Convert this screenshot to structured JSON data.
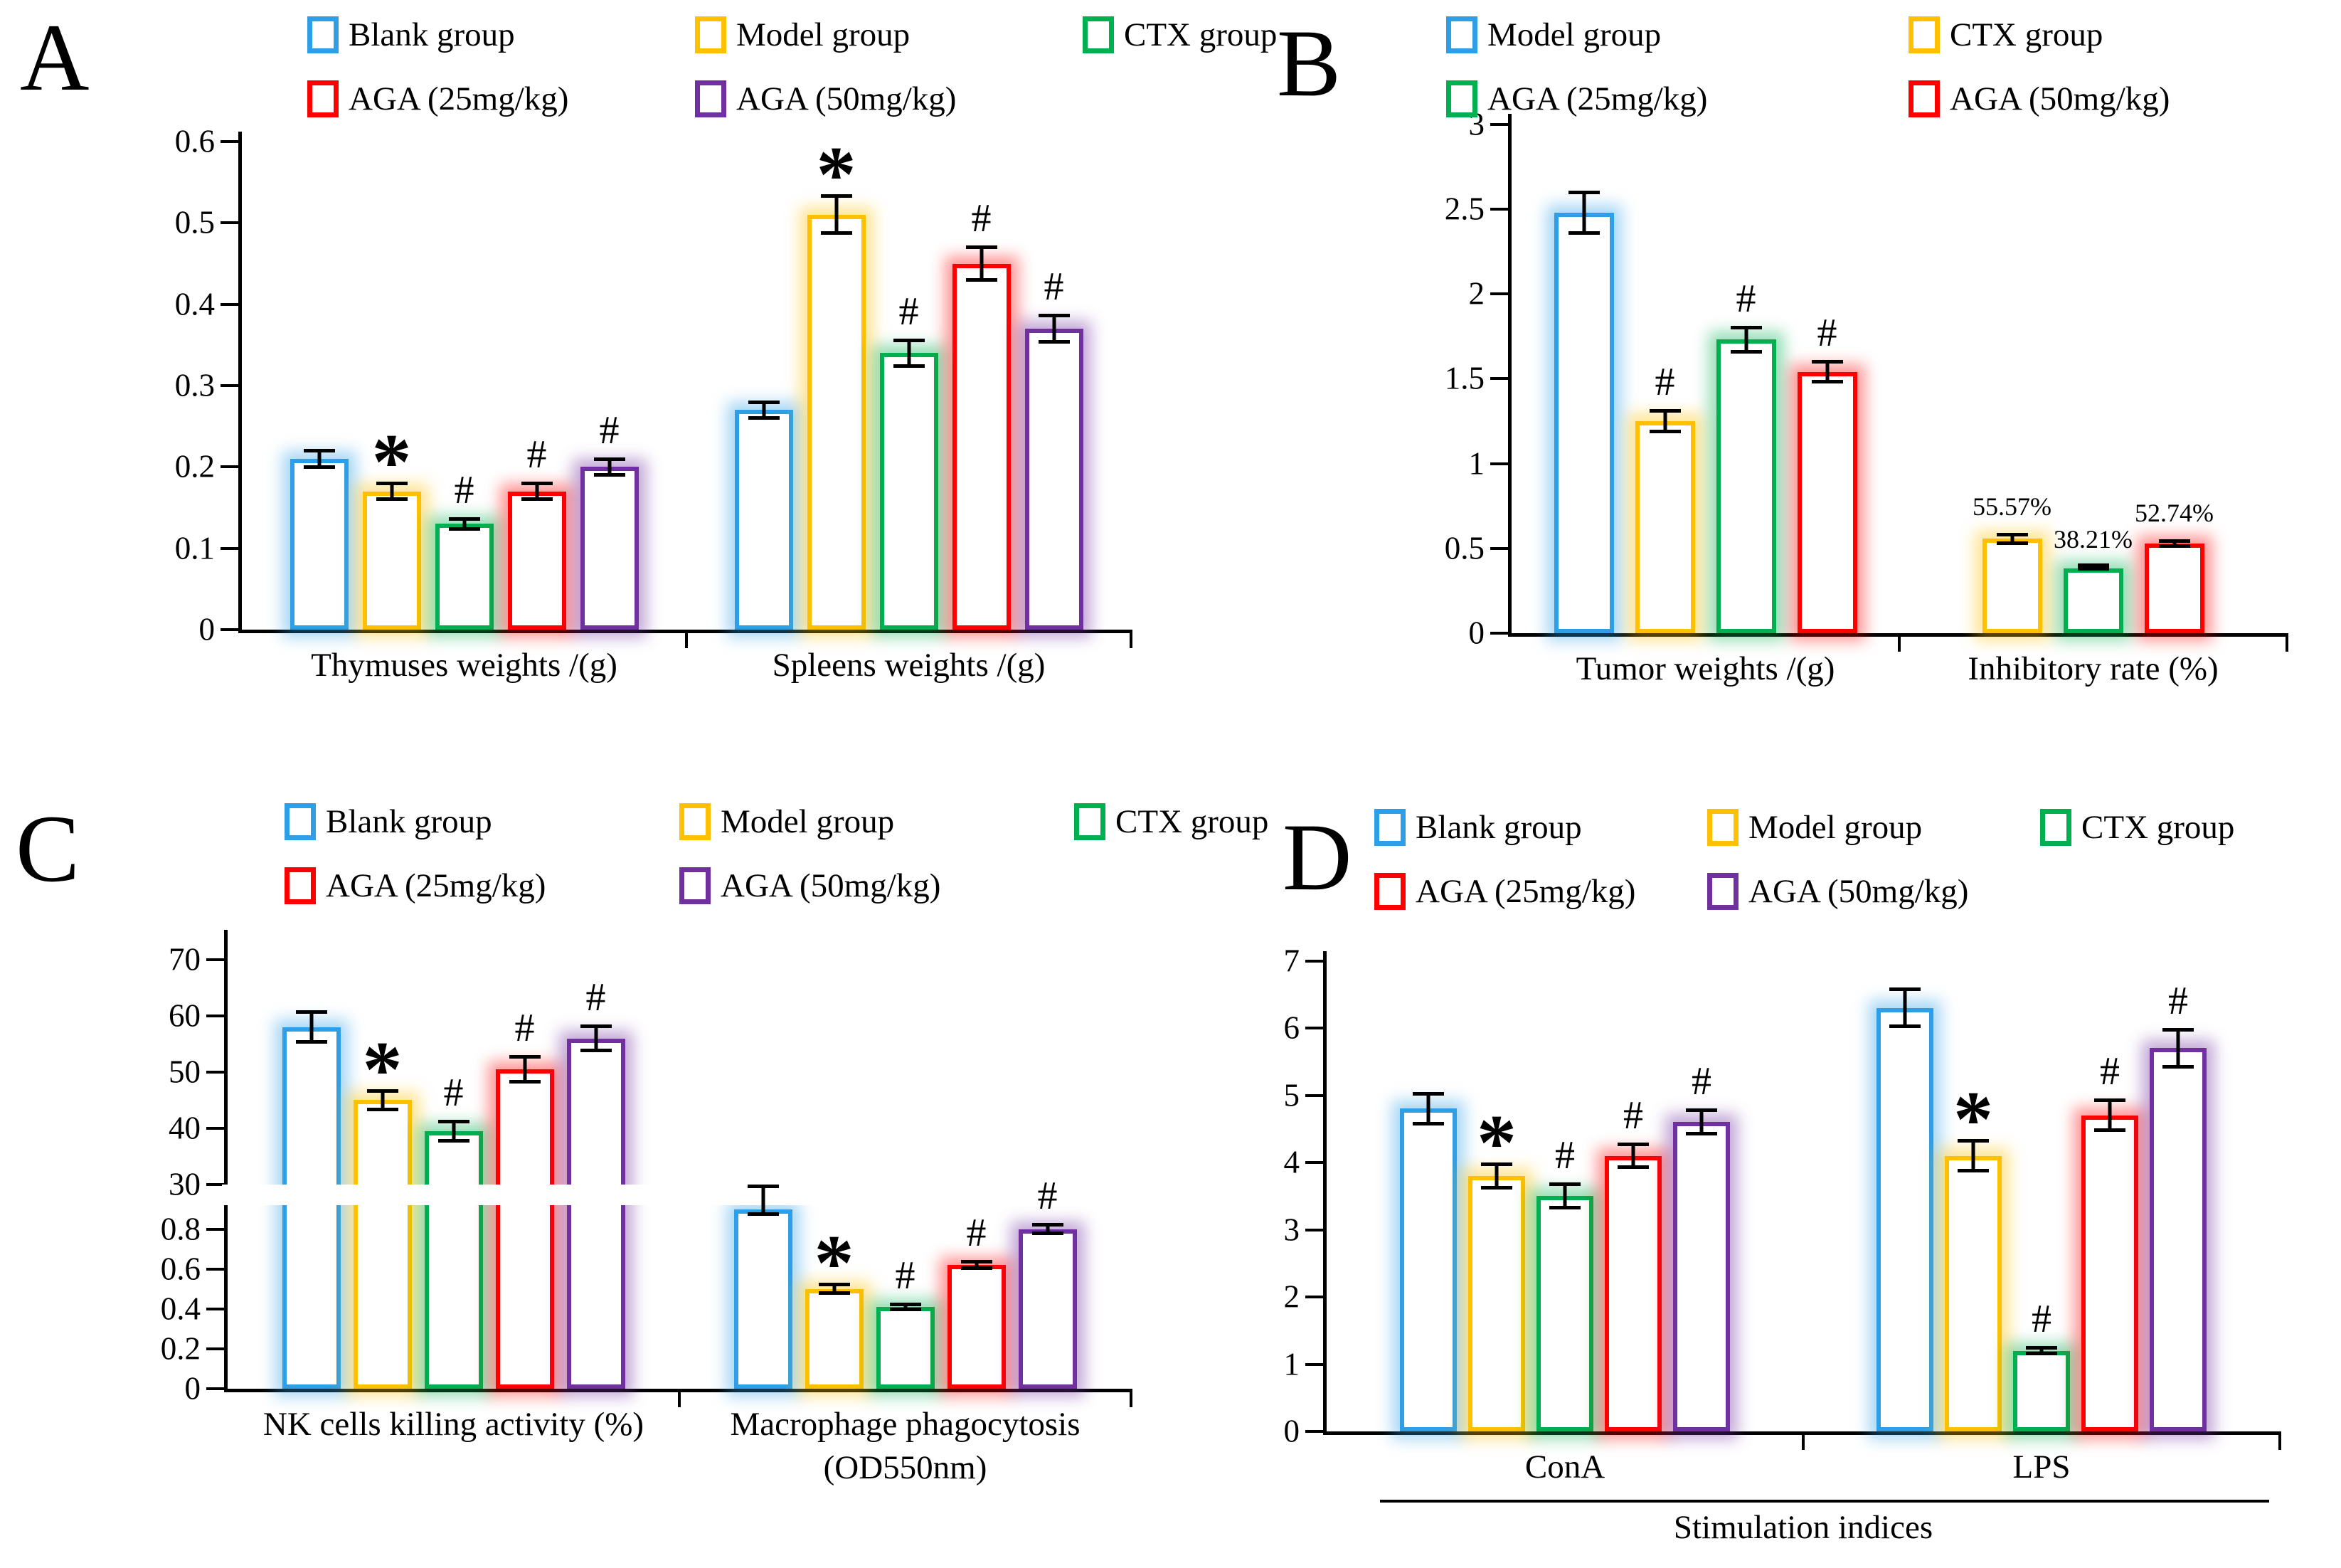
{
  "figure": {
    "background": "#FFFFFF"
  },
  "colors": {
    "blank": "#2E9FE6",
    "model_yellow": "#FFC000",
    "ctx_green": "#00B050",
    "aga25_red": "#FF0000",
    "aga50_purple": "#7030A0",
    "axis": "#000000"
  },
  "chart_data": [
    {
      "panel": "A",
      "type": "bar",
      "grid": false,
      "legend_position": "top",
      "legend_rows": [
        [
          {
            "label": "Blank group",
            "color": "#2E9FE6"
          },
          {
            "label": "Model group",
            "color": "#FFC000"
          },
          {
            "label": "CTX group",
            "color": "#00B050"
          }
        ],
        [
          {
            "label": "AGA (25mg/kg)",
            "color": "#FF0000"
          },
          {
            "label": "AGA (50mg/kg)",
            "color": "#7030A0"
          }
        ]
      ],
      "y_axis": {
        "ylim": [
          0,
          0.6
        ],
        "break_frac": 0,
        "segments": [
          {
            "min": 0,
            "max": 0.6,
            "frac": 0.98,
            "ticks": [
              [
                "0",
                0
              ],
              [
                "0.1",
                0.1
              ],
              [
                "0.2",
                0.2
              ],
              [
                "0.3",
                0.3
              ],
              [
                "0.4",
                0.4
              ],
              [
                "0.5",
                0.5
              ],
              [
                "0.6",
                0.6
              ]
            ]
          }
        ]
      },
      "groups": [
        {
          "label": [
            "Thymuses weights /(g)"
          ],
          "bars": [
            {
              "series": "Blank group",
              "color": "#2E9FE6",
              "value": 0.21,
              "err": 0.012,
              "mark": ""
            },
            {
              "series": "Model group",
              "color": "#FFC000",
              "value": 0.17,
              "err": 0.012,
              "mark": "*"
            },
            {
              "series": "CTX group",
              "color": "#00B050",
              "value": 0.13,
              "err": 0.008,
              "mark": "#"
            },
            {
              "series": "AGA (25mg/kg)",
              "color": "#FF0000",
              "value": 0.17,
              "err": 0.012,
              "mark": "#"
            },
            {
              "series": "AGA (50mg/kg)",
              "color": "#7030A0",
              "value": 0.2,
              "err": 0.012,
              "mark": "#"
            }
          ]
        },
        {
          "label": [
            "Spleens weights /(g)"
          ],
          "bars": [
            {
              "series": "Blank group",
              "color": "#2E9FE6",
              "value": 0.27,
              "err": 0.012,
              "mark": ""
            },
            {
              "series": "Model group",
              "color": "#FFC000",
              "value": 0.51,
              "err": 0.025,
              "mark": "*"
            },
            {
              "series": "CTX group",
              "color": "#00B050",
              "value": 0.34,
              "err": 0.018,
              "mark": "#"
            },
            {
              "series": "AGA (25mg/kg)",
              "color": "#FF0000",
              "value": 0.45,
              "err": 0.022,
              "mark": "#"
            },
            {
              "series": "AGA (50mg/kg)",
              "color": "#7030A0",
              "value": 0.37,
              "err": 0.018,
              "mark": "#"
            }
          ]
        }
      ],
      "x_bracket": null
    },
    {
      "panel": "B",
      "type": "bar",
      "grid": false,
      "legend_position": "top",
      "legend_rows": [
        [
          {
            "label": "Model group",
            "color": "#2E9FE6"
          },
          {
            "label": "CTX group",
            "color": "#FFC000"
          }
        ],
        [
          {
            "label": "AGA (25mg/kg)",
            "color": "#00B050"
          },
          {
            "label": "AGA (50mg/kg)",
            "color": "#FF0000"
          }
        ]
      ],
      "y_axis": {
        "ylim": [
          0,
          3
        ],
        "break_frac": 0,
        "segments": [
          {
            "min": 0,
            "max": 3,
            "frac": 0.98,
            "ticks": [
              [
                "0",
                0
              ],
              [
                "0.5",
                0.5
              ],
              [
                "1",
                1
              ],
              [
                "1.5",
                1.5
              ],
              [
                "2",
                2
              ],
              [
                "2.5",
                2.5
              ],
              [
                "3",
                3
              ]
            ]
          }
        ]
      },
      "groups": [
        {
          "label": [
            "Tumor weights /(g)"
          ],
          "bars": [
            {
              "series": "Model group",
              "color": "#2E9FE6",
              "value": 2.48,
              "err": 0.13,
              "mark": ""
            },
            {
              "series": "CTX group",
              "color": "#FFC000",
              "value": 1.25,
              "err": 0.07,
              "mark": "#"
            },
            {
              "series": "AGA (25mg/kg)",
              "color": "#00B050",
              "value": 1.73,
              "err": 0.08,
              "mark": "#"
            },
            {
              "series": "AGA (50mg/kg)",
              "color": "#FF0000",
              "value": 1.54,
              "err": 0.07,
              "mark": "#"
            }
          ]
        },
        {
          "label": [
            "Inhibitory rate (%)"
          ],
          "bars": [
            {
              "series": "CTX group",
              "color": "#FFC000",
              "value": 0.556,
              "err": 0.035,
              "mark": "",
              "value_label": "55.57%"
            },
            {
              "series": "AGA (25mg/kg)",
              "color": "#00B050",
              "value": 0.382,
              "err": 0.015,
              "mark": "",
              "value_label": "38.21%"
            },
            {
              "series": "AGA (50mg/kg)",
              "color": "#FF0000",
              "value": 0.527,
              "err": 0.025,
              "mark": "",
              "value_label": "52.74%"
            }
          ]
        }
      ],
      "x_bracket": null
    },
    {
      "panel": "C",
      "type": "bar",
      "grid": false,
      "legend_position": "top",
      "axis_break": true,
      "legend_rows": [
        [
          {
            "label": "Blank group",
            "color": "#2E9FE6"
          },
          {
            "label": "Model group",
            "color": "#FFC000"
          },
          {
            "label": "CTX group",
            "color": "#00B050"
          }
        ],
        [
          {
            "label": "AGA (25mg/kg)",
            "color": "#FF0000"
          },
          {
            "label": "AGA (50mg/kg)",
            "color": "#7030A0"
          }
        ]
      ],
      "y_axis": {
        "ylim": [
          0,
          70
        ],
        "break_frac": 0.045,
        "segments": [
          {
            "min": 0,
            "max": 0.92,
            "frac": 0.4,
            "ticks": [
              [
                "0",
                0
              ],
              [
                "0.2",
                0.2
              ],
              [
                "0.4",
                0.4
              ],
              [
                "0.6",
                0.6
              ],
              [
                "0.8",
                0.8
              ]
            ]
          },
          {
            "min": 30,
            "max": 70,
            "frac": 0.49,
            "ticks": [
              [
                "30",
                30
              ],
              [
                "40",
                40
              ],
              [
                "50",
                50
              ],
              [
                "60",
                60
              ],
              [
                "70",
                70
              ]
            ]
          }
        ]
      },
      "groups": [
        {
          "label": [
            "NK cells killing activity (%)"
          ],
          "bars": [
            {
              "series": "Blank group",
              "color": "#2E9FE6",
              "value": 58,
              "err": 3,
              "mark": ""
            },
            {
              "series": "Model group",
              "color": "#FFC000",
              "value": 45,
              "err": 2,
              "mark": "*"
            },
            {
              "series": "CTX group",
              "color": "#00B050",
              "value": 39.5,
              "err": 2,
              "mark": "#"
            },
            {
              "series": "AGA (25mg/kg)",
              "color": "#FF0000",
              "value": 50.5,
              "err": 2.5,
              "mark": "#"
            },
            {
              "series": "AGA (50mg/kg)",
              "color": "#7030A0",
              "value": 56,
              "err": 2.5,
              "mark": "#"
            }
          ]
        },
        {
          "label": [
            "Macrophage phagocytosis",
            "(OD550nm)"
          ],
          "bars": [
            {
              "series": "Blank group",
              "color": "#2E9FE6",
              "value": 0.9,
              "err": 0.035,
              "mark": ""
            },
            {
              "series": "Model group",
              "color": "#FFC000",
              "value": 0.5,
              "err": 0.03,
              "mark": "*"
            },
            {
              "series": "CTX group",
              "color": "#00B050",
              "value": 0.41,
              "err": 0.02,
              "mark": "#"
            },
            {
              "series": "AGA (25mg/kg)",
              "color": "#FF0000",
              "value": 0.62,
              "err": 0.025,
              "mark": "#"
            },
            {
              "series": "AGA (50mg/kg)",
              "color": "#7030A0",
              "value": 0.8,
              "err": 0.03,
              "mark": "#"
            }
          ]
        }
      ],
      "x_bracket": null
    },
    {
      "panel": "D",
      "type": "bar",
      "grid": false,
      "legend_position": "top",
      "legend_rows": [
        [
          {
            "label": "Blank group",
            "color": "#2E9FE6"
          },
          {
            "label": "Model group",
            "color": "#FFC000"
          },
          {
            "label": "CTX group",
            "color": "#00B050"
          }
        ],
        [
          {
            "label": "AGA (25mg/kg)",
            "color": "#FF0000"
          },
          {
            "label": "AGA (50mg/kg)",
            "color": "#7030A0"
          }
        ]
      ],
      "y_axis": {
        "ylim": [
          0,
          7
        ],
        "break_frac": 0,
        "segments": [
          {
            "min": 0,
            "max": 7,
            "frac": 0.98,
            "ticks": [
              [
                "0",
                0
              ],
              [
                "1",
                1
              ],
              [
                "2",
                2
              ],
              [
                "3",
                3
              ],
              [
                "4",
                4
              ],
              [
                "5",
                5
              ],
              [
                "6",
                6
              ],
              [
                "7",
                7
              ]
            ]
          }
        ]
      },
      "groups": [
        {
          "label": [
            "ConA"
          ],
          "bars": [
            {
              "series": "Blank group",
              "color": "#2E9FE6",
              "value": 4.8,
              "err": 0.25,
              "mark": ""
            },
            {
              "series": "Model group",
              "color": "#FFC000",
              "value": 3.8,
              "err": 0.2,
              "mark": "*"
            },
            {
              "series": "CTX group",
              "color": "#00B050",
              "value": 3.5,
              "err": 0.2,
              "mark": "#"
            },
            {
              "series": "AGA (25mg/kg)",
              "color": "#FF0000",
              "value": 4.1,
              "err": 0.2,
              "mark": "#"
            },
            {
              "series": "AGA (50mg/kg)",
              "color": "#7030A0",
              "value": 4.6,
              "err": 0.2,
              "mark": "#"
            }
          ]
        },
        {
          "label": [
            "LPS"
          ],
          "bars": [
            {
              "series": "Blank group",
              "color": "#2E9FE6",
              "value": 6.3,
              "err": 0.3,
              "mark": ""
            },
            {
              "series": "Model group",
              "color": "#FFC000",
              "value": 4.1,
              "err": 0.25,
              "mark": "*"
            },
            {
              "series": "CTX group",
              "color": "#00B050",
              "value": 1.2,
              "err": 0.07,
              "mark": "#"
            },
            {
              "series": "AGA (25mg/kg)",
              "color": "#FF0000",
              "value": 4.7,
              "err": 0.25,
              "mark": "#"
            },
            {
              "series": "AGA (50mg/kg)",
              "color": "#7030A0",
              "value": 5.7,
              "err": 0.3,
              "mark": "#"
            }
          ]
        }
      ],
      "x_bracket": {
        "label": "Stimulation indices"
      }
    }
  ]
}
